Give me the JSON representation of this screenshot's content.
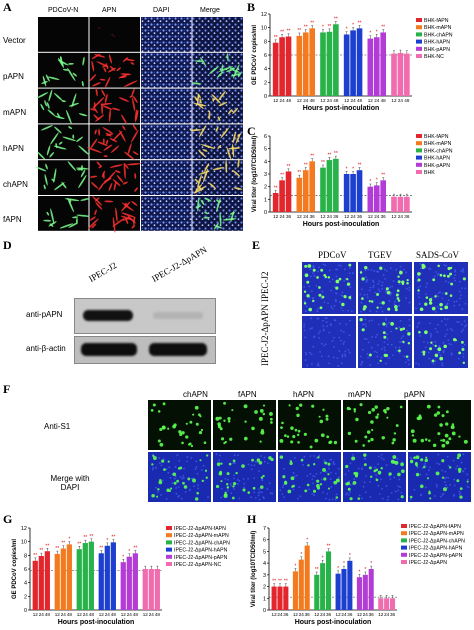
{
  "panel_letters": {
    "A": "A",
    "B": "B",
    "C": "C",
    "D": "D",
    "E": "E",
    "F": "F",
    "G": "G",
    "H": "H"
  },
  "panelA": {
    "columns": [
      "PDCoV-N",
      "APN",
      "DAPI",
      "Merge"
    ],
    "rows": [
      "Vector",
      "pAPN",
      "mAPN",
      "hAPN",
      "chAPN",
      "fAPN"
    ]
  },
  "panelD": {
    "lanes": [
      "IPEC-J2",
      "IPEC-J2-ΔpAPN"
    ],
    "bands": [
      "anti-pAPN",
      "anti-β-actin"
    ]
  },
  "panelE": {
    "columns": [
      "PDCoV",
      "TGEV",
      "SADS-CoV"
    ],
    "rows": [
      "IPEC-J2",
      "IPEC-J2-ΔpAPN"
    ]
  },
  "panelF": {
    "columns": [
      "chAPN",
      "fAPN",
      "hAPN",
      "mAPN",
      "pAPN"
    ],
    "rows": [
      "Anti-S1",
      "Merge with DAPI"
    ]
  },
  "colors": [
    "#e3262d",
    "#f47a20",
    "#27b24a",
    "#1d3fcf",
    "#b43cd6",
    "#f06cae"
  ],
  "chart_data": [
    {
      "id": "B",
      "type": "bar",
      "xlabel": "Hours post-inoculation",
      "ylabel": "GE PDCoV copies/ml",
      "ylim": [
        0,
        12
      ],
      "yticks": [
        0,
        2,
        4,
        6,
        8,
        10,
        12
      ],
      "time_labels": [
        "12",
        "24",
        "48"
      ],
      "series": [
        {
          "name": "BHK-fAPN",
          "values": [
            7.8,
            8.6,
            8.7
          ]
        },
        {
          "name": "BHK-mAPN",
          "values": [
            8.8,
            9.3,
            9.9
          ]
        },
        {
          "name": "BHK-chAPN",
          "values": [
            9.3,
            9.4,
            10.5
          ]
        },
        {
          "name": "BHK-hAPN",
          "values": [
            9.0,
            9.6,
            9.9
          ]
        },
        {
          "name": "BHK-pAPN",
          "values": [
            8.4,
            8.6,
            9.3
          ]
        },
        {
          "name": "BHK-NC",
          "values": [
            6.2,
            6.3,
            6.2
          ]
        }
      ],
      "asterisks": [
        "**",
        "**",
        "**",
        "**",
        "**",
        "**",
        "*",
        "**",
        "**",
        "*",
        "*",
        "**",
        "*",
        "*",
        "**",
        "",
        "",
        ""
      ]
    },
    {
      "id": "C",
      "type": "bar",
      "xlabel": "Hours post-inoculation",
      "ylabel": "Viral titer (log10TCID50/ml)",
      "ylim": [
        0,
        6
      ],
      "yticks": [
        0,
        1,
        2,
        3,
        4,
        5,
        6
      ],
      "time_labels": [
        "12",
        "24",
        "36"
      ],
      "series": [
        {
          "name": "BHK-fAPN",
          "values": [
            1.5,
            2.5,
            3.2
          ]
        },
        {
          "name": "BHK-mAPN",
          "values": [
            2.7,
            3.3,
            4.0
          ]
        },
        {
          "name": "BHK-chAPN",
          "values": [
            3.5,
            4.1,
            4.2
          ]
        },
        {
          "name": "BHK-hAPN",
          "values": [
            3.0,
            3.0,
            3.3
          ]
        },
        {
          "name": "BHK-pAPN",
          "values": [
            2.0,
            2.1,
            2.5
          ]
        },
        {
          "name": "BHK",
          "values": [
            1.2,
            1.2,
            1.2
          ]
        }
      ],
      "asterisks": [
        "**",
        "**",
        "**",
        "**",
        "**",
        "**",
        "**",
        "**",
        "**",
        "*",
        "*",
        "**",
        "*",
        "*",
        "**",
        "",
        "",
        ""
      ]
    },
    {
      "id": "G",
      "type": "bar",
      "xlabel": "Hours post-inoculation",
      "ylabel": "GE PDCoV copies/ml",
      "ylim": [
        0,
        12
      ],
      "yticks": [
        0,
        2,
        4,
        6,
        8,
        10,
        12
      ],
      "time_labels": [
        "12",
        "24",
        "48"
      ],
      "series": [
        {
          "name": "IPEC-J2-ΔpAPN-fAPN",
          "values": [
            7.2,
            7.9,
            8.6
          ]
        },
        {
          "name": "IPEC-J2-ΔpAPN-mAPN",
          "values": [
            8.2,
            9.0,
            9.6
          ]
        },
        {
          "name": "IPEC-J2-ΔpAPN-chAPN",
          "values": [
            8.9,
            9.8,
            10.0
          ]
        },
        {
          "name": "IPEC-J2-ΔpAPN-hAPN",
          "values": [
            8.3,
            9.4,
            9.9
          ]
        },
        {
          "name": "IPEC-J2-ΔpAPN-pAPN",
          "values": [
            7.0,
            7.8,
            8.3
          ]
        },
        {
          "name": "IPEC-J2-ΔpAPN-NC",
          "values": [
            6.0,
            6.0,
            6.0
          ]
        }
      ],
      "asterisks": [
        "**",
        "**",
        "**",
        "**",
        "**",
        "*",
        "**",
        "**",
        "**",
        "**",
        "*",
        "**",
        "*",
        "*",
        "**",
        "",
        "",
        ""
      ]
    },
    {
      "id": "H",
      "type": "bar",
      "xlabel": "Hours post-inoculation",
      "ylabel": "Viral titer (log10TCID50/ml)",
      "ylim": [
        0,
        7
      ],
      "yticks": [
        0,
        1,
        2,
        3,
        4,
        5,
        6,
        7
      ],
      "time_labels": [
        "12",
        "24",
        "36"
      ],
      "series": [
        {
          "name": "IPEC-J2-ΔpAPN-fAPN",
          "values": [
            2.0,
            2.0,
            2.0
          ]
        },
        {
          "name": "IPEC-J2-ΔpAPN-mAPN",
          "values": [
            3.3,
            4.3,
            5.5
          ]
        },
        {
          "name": "IPEC-J2-ΔpAPN-chAPN",
          "values": [
            3.0,
            4.0,
            5.0
          ]
        },
        {
          "name": "IPEC-J2-ΔpAPN-hAPN",
          "values": [
            3.1,
            3.5,
            4.2
          ]
        },
        {
          "name": "IPEC-J2-ΔpAPN-pAPN",
          "values": [
            2.8,
            3.0,
            3.5
          ]
        },
        {
          "name": "IPEC-J2-ΔpAPN",
          "values": [
            1.0,
            1.0,
            1.0
          ]
        }
      ],
      "asterisks": [
        "**",
        "**",
        "**",
        "*",
        "*",
        "*",
        "**",
        "*",
        "**",
        "*",
        "*",
        "*",
        "*",
        "*",
        "*",
        "",
        "",
        ""
      ]
    }
  ]
}
